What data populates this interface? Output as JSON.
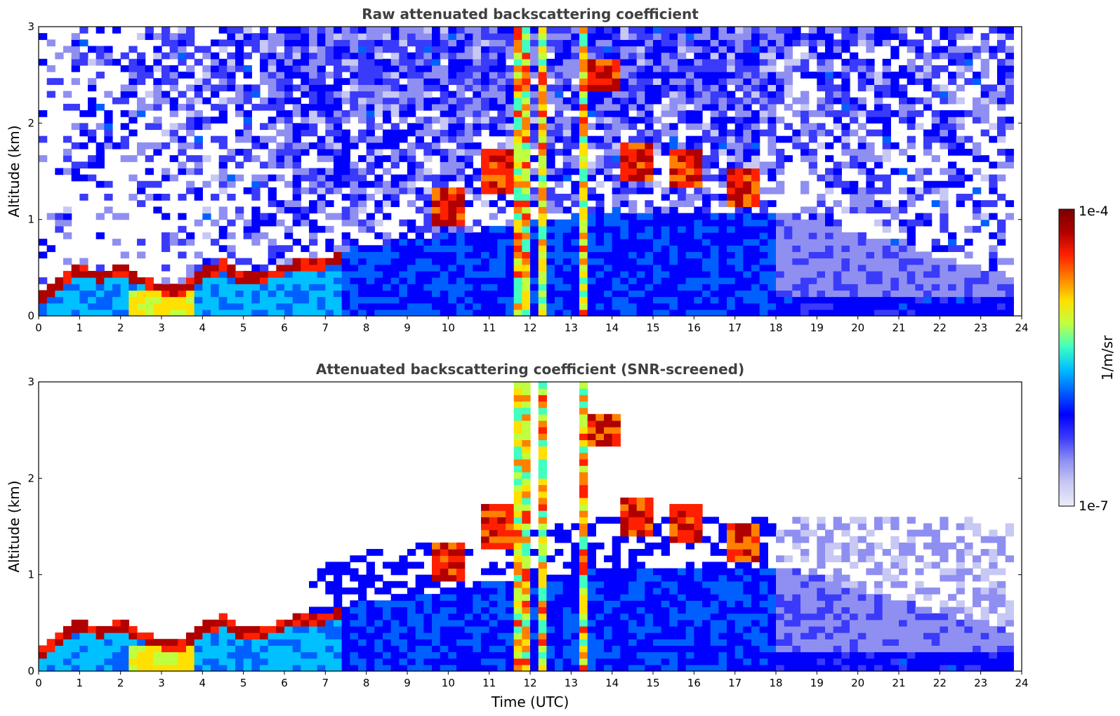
{
  "chart_data": [
    {
      "type": "heatmap",
      "title": "Raw attenuated backscattering coefficient",
      "xlabel": "",
      "ylabel": "Altitude (km)",
      "xlim": [
        0,
        24
      ],
      "ylim": [
        0,
        3
      ],
      "x_ticks": [
        "0",
        "1",
        "2",
        "3",
        "4",
        "5",
        "6",
        "7",
        "8",
        "9",
        "10",
        "11",
        "12",
        "13",
        "14",
        "15",
        "16",
        "17",
        "18",
        "19",
        "20",
        "21",
        "22",
        "23",
        "24"
      ],
      "y_ticks": [
        "0",
        "1",
        "2",
        "3"
      ],
      "screened": false,
      "boundary_layer_top_km": [
        [
          0,
          0.22
        ],
        [
          0.5,
          0.4
        ],
        [
          1,
          0.55
        ],
        [
          1.5,
          0.45
        ],
        [
          2,
          0.55
        ],
        [
          2.5,
          0.42
        ],
        [
          3,
          0.35
        ],
        [
          3.5,
          0.35
        ],
        [
          4,
          0.48
        ],
        [
          4.5,
          0.58
        ],
        [
          5,
          0.45
        ],
        [
          5.5,
          0.45
        ],
        [
          6,
          0.55
        ],
        [
          6.5,
          0.58
        ],
        [
          7,
          0.6
        ],
        [
          7.5,
          0.7
        ]
      ]
    },
    {
      "type": "heatmap",
      "title": "Attenuated backscattering coefficient (SNR-screened)",
      "xlabel": "Time (UTC)",
      "ylabel": "Altitude (km)",
      "xlim": [
        0,
        24
      ],
      "ylim": [
        0,
        3
      ],
      "x_ticks": [
        "0",
        "1",
        "2",
        "3",
        "4",
        "5",
        "6",
        "7",
        "8",
        "9",
        "10",
        "11",
        "12",
        "13",
        "14",
        "15",
        "16",
        "17",
        "18",
        "19",
        "20",
        "21",
        "22",
        "23",
        "24"
      ],
      "y_ticks": [
        "0",
        "1",
        "2",
        "3"
      ],
      "screened": true,
      "boundary_layer_top_km": [
        [
          0,
          0.22
        ],
        [
          0.5,
          0.4
        ],
        [
          1,
          0.55
        ],
        [
          1.5,
          0.45
        ],
        [
          2,
          0.55
        ],
        [
          2.5,
          0.42
        ],
        [
          3,
          0.35
        ],
        [
          3.5,
          0.35
        ],
        [
          4,
          0.48
        ],
        [
          4.5,
          0.58
        ],
        [
          5,
          0.45
        ],
        [
          5.5,
          0.45
        ],
        [
          6,
          0.55
        ],
        [
          6.5,
          0.58
        ],
        [
          7,
          0.6
        ],
        [
          7.5,
          0.7
        ]
      ]
    }
  ],
  "colorbar": {
    "label": "1/m/sr",
    "max_label": "1e-4",
    "min_label": "1e-7",
    "colormap": "jet",
    "colors": [
      "#ececf8",
      "#c8c8f4",
      "#8f8ff2",
      "#3a3afa",
      "#0000ff",
      "#0060ff",
      "#00c0ff",
      "#40ffc0",
      "#c0ff40",
      "#ffe000",
      "#ff8000",
      "#ff2000",
      "#b00000",
      "#7a0000"
    ]
  },
  "features": {
    "cloud_spikes_hours": [
      11.8,
      12.3,
      13.35
    ],
    "elevated_layers": [
      [
        10.0,
        1.1
      ],
      [
        11.3,
        1.5
      ],
      [
        13.8,
        2.5
      ],
      [
        14.6,
        1.6
      ],
      [
        15.8,
        1.55
      ],
      [
        17.2,
        1.35
      ]
    ]
  }
}
